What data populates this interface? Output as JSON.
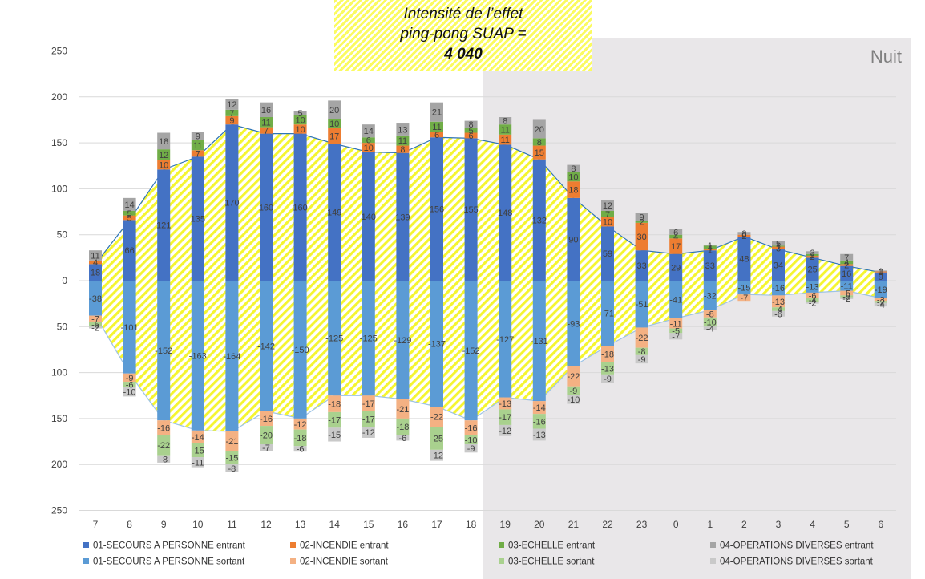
{
  "chart_data": {
    "type": "bar",
    "stacked": true,
    "title_lines": [
      "Intensité de l’effet",
      "ping-pong SUAP =",
      "4 040"
    ],
    "night_label": "Nuit",
    "categories": [
      "7",
      "8",
      "9",
      "10",
      "11",
      "12",
      "13",
      "14",
      "15",
      "16",
      "17",
      "18",
      "19",
      "20",
      "21",
      "22",
      "23",
      "0",
      "1",
      "2",
      "3",
      "4",
      "5",
      "6"
    ],
    "y_ticks": [
      "250",
      "200",
      "150",
      "100",
      "50",
      "0",
      "50",
      "100",
      "150",
      "200",
      "250"
    ],
    "ylim": [
      -250,
      250
    ],
    "series": [
      {
        "name": "01-SECOURS A PERSONNE entrant",
        "color": "#4472c4",
        "values": [
          18,
          66,
          121,
          135,
          170,
          160,
          160,
          149,
          140,
          139,
          156,
          155,
          148,
          132,
          90,
          59,
          33,
          29,
          33,
          48,
          34,
          25,
          16,
          9
        ],
        "labels": [
          "18",
          "66",
          "121",
          "135",
          "170",
          "160",
          "160",
          "149",
          "140",
          "139",
          "156",
          "155",
          "148",
          "132",
          "90",
          "59",
          "33",
          "29",
          "33",
          "48",
          "34",
          "25",
          "16",
          "9"
        ]
      },
      {
        "name": "02-INCENDIE entrant",
        "color": "#ed7d31",
        "values": [
          4,
          5,
          10,
          7,
          9,
          7,
          10,
          17,
          10,
          8,
          6,
          6,
          11,
          15,
          18,
          10,
          30,
          17,
          1,
          2,
          3,
          2,
          2,
          1
        ],
        "labels": [
          "4",
          "5",
          "10",
          "7",
          "9",
          "7",
          "10",
          "17",
          "10",
          "8",
          "6",
          "6",
          "11",
          "15",
          "18",
          "10",
          "30",
          "17",
          "1",
          "2",
          "3",
          "2",
          "2",
          "1"
        ]
      },
      {
        "name": "03-ECHELLE entrant",
        "color": "#70ad47",
        "values": [
          0,
          5,
          12,
          11,
          7,
          11,
          10,
          10,
          6,
          11,
          11,
          5,
          11,
          8,
          10,
          7,
          2,
          4,
          4,
          0,
          1,
          2,
          4,
          0
        ],
        "labels": [
          "",
          "5",
          "12",
          "11",
          "7",
          "11",
          "10",
          "10",
          "6",
          "11",
          "11",
          "5",
          "11",
          "8",
          "10",
          "7",
          "2",
          "4",
          "4",
          "0",
          "1",
          "2",
          "4",
          "0"
        ]
      },
      {
        "name": "04-OPERATIONS DIVERSES entrant",
        "color": "#a5a5a5",
        "values": [
          11,
          14,
          18,
          9,
          12,
          16,
          5,
          20,
          14,
          13,
          21,
          8,
          8,
          20,
          8,
          12,
          9,
          6,
          1,
          3,
          5,
          3,
          7,
          1
        ],
        "labels": [
          "11",
          "14",
          "18",
          "9",
          "12",
          "16",
          "5",
          "20",
          "14",
          "13",
          "21",
          "8",
          "8",
          "20",
          "8",
          "12",
          "9",
          "6",
          "1",
          "3",
          "5",
          "3",
          "7",
          "1"
        ]
      },
      {
        "name": "01-SECOURS A PERSONNE sortant",
        "color": "#5b9bd5",
        "values": [
          -38,
          -101,
          -152,
          -163,
          -164,
          -142,
          -150,
          -125,
          -125,
          -129,
          -137,
          -152,
          -127,
          -131,
          -93,
          -71,
          -51,
          -41,
          -32,
          -15,
          -16,
          -13,
          -11,
          -19
        ],
        "labels": [
          "-38",
          "-101",
          "-152",
          "-163",
          "-164",
          "-142",
          "-150",
          "-125",
          "-125",
          "-129",
          "-137",
          "-152",
          "-127",
          "-131",
          "-93",
          "-71",
          "-51",
          "-41",
          "-32",
          "-15",
          "-16",
          "-13",
          "-11",
          "-19"
        ]
      },
      {
        "name": "02-INCENDIE sortant",
        "color": "#f4b183",
        "values": [
          -7,
          -9,
          -16,
          -14,
          -21,
          -16,
          -12,
          -18,
          -17,
          -21,
          -22,
          -16,
          -13,
          -14,
          -22,
          -18,
          -22,
          -11,
          -8,
          -7,
          -13,
          -6,
          -5,
          -3
        ],
        "labels": [
          "-7",
          "-9",
          "-16",
          "-14",
          "-21",
          "-16",
          "-12",
          "-18",
          "-17",
          "-21",
          "-22",
          "-16",
          "-13",
          "-14",
          "-22",
          "-18",
          "-22",
          "-11",
          "-8",
          "-7",
          "-13",
          "-6",
          "-5",
          "-3"
        ]
      },
      {
        "name": "03-ECHELLE sortant",
        "color": "#a9d18e",
        "values": [
          -5,
          -6,
          -22,
          -15,
          -15,
          -20,
          -18,
          -17,
          -17,
          -18,
          -25,
          -10,
          -17,
          -16,
          -9,
          -13,
          -8,
          -5,
          -10,
          0,
          -4,
          -4,
          -2,
          -2
        ],
        "labels": [
          "-5",
          "-6",
          "-22",
          "-15",
          "-15",
          "-20",
          "-18",
          "-17",
          "-17",
          "-18",
          "-25",
          "-10",
          "-17",
          "-16",
          "-9",
          "-13",
          "-8",
          "-5",
          "-10",
          "",
          "-4",
          "-4",
          "-2",
          "-2"
        ]
      },
      {
        "name": "04-OPERATIONS DIVERSES sortant",
        "color": "#c9c9c9",
        "values": [
          -2,
          -10,
          -8,
          -11,
          -8,
          -7,
          -6,
          -15,
          -12,
          -6,
          -12,
          -9,
          -12,
          -13,
          -10,
          -9,
          -9,
          -7,
          -4,
          0,
          -6,
          -2,
          -2,
          -4
        ],
        "labels": [
          "-2",
          "-10",
          "-8",
          "-11",
          "-8",
          "-7",
          "-6",
          "-15",
          "-12",
          "-6",
          "-12",
          "-9",
          "-12",
          "-13",
          "-10",
          "-9",
          "-9",
          "-7",
          "-4",
          "",
          "-6",
          "-2",
          "-2",
          "-4"
        ]
      }
    ],
    "band": {
      "color": "#ffff00",
      "line_color": "#2e75b6",
      "fill": "yellow diagonal hatch between entrant and sortant SECOURS A PERSONNE",
      "night_from_category": "19"
    },
    "colors": {
      "night_background": "#e9e7e9",
      "grid": "#d9d9d9"
    }
  }
}
